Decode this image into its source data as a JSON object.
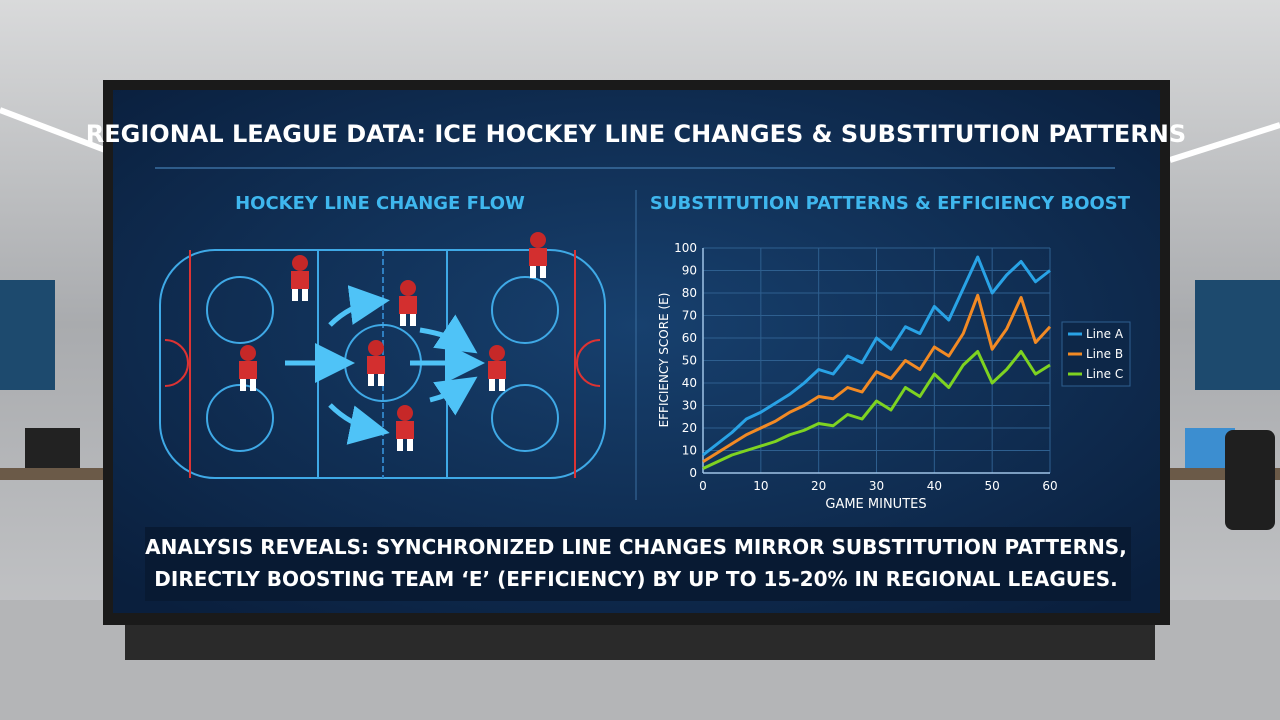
{
  "header": {
    "title": "REGIONAL LEAGUE DATA: ICE HOCKEY LINE CHANGES & SUBSTITUTION PATTERNS"
  },
  "left_panel": {
    "title": "HOCKEY LINE CHANGE FLOW"
  },
  "chart_data": {
    "type": "line",
    "title": "SUBSTITUTION PATTERNS & EFFICIENCY BOOST",
    "x_label": "GAME MINUTES",
    "y_label": "EFFICIENCY SCORE (E)",
    "x": [
      0,
      2.5,
      5,
      7.5,
      10,
      12.5,
      15,
      17.5,
      20,
      22.5,
      25,
      27.5,
      30,
      32.5,
      35,
      37.5,
      40,
      42.5,
      45,
      47.5,
      50,
      52.5,
      55,
      57.5,
      60
    ],
    "series": [
      {
        "name": "Line A",
        "color": "#29a3e6",
        "values": [
          8,
          13,
          18,
          24,
          27,
          31,
          35,
          40,
          46,
          44,
          52,
          49,
          60,
          55,
          65,
          62,
          74,
          68,
          82,
          96,
          80,
          88,
          94,
          85,
          90
        ]
      },
      {
        "name": "Line B",
        "color": "#f28a24",
        "values": [
          5,
          9,
          13,
          17,
          20,
          23,
          27,
          30,
          34,
          33,
          38,
          36,
          45,
          42,
          50,
          46,
          56,
          52,
          62,
          79,
          55,
          64,
          78,
          58,
          65
        ]
      },
      {
        "name": "Line C",
        "color": "#7ed321",
        "values": [
          2,
          5,
          8,
          10,
          12,
          14,
          17,
          19,
          22,
          21,
          26,
          24,
          32,
          28,
          38,
          34,
          44,
          38,
          48,
          54,
          40,
          46,
          54,
          44,
          48
        ]
      }
    ],
    "xlim": [
      0,
      60
    ],
    "xticks": [
      0,
      10,
      20,
      30,
      40,
      50,
      60
    ],
    "ylim": [
      0,
      100
    ],
    "yticks": [
      0,
      10,
      20,
      30,
      40,
      50,
      60,
      70,
      80,
      90,
      100
    ],
    "grid": true,
    "legend": "right"
  },
  "footer": {
    "lines": [
      "ANALYSIS REVEALS: SYNCHRONIZED LINE CHANGES MIRROR SUBSTITUTION PATTERNS,",
      "DIRECTLY BOOSTING TEAM ‘E’ (EFFICIENCY) BY UP TO 15-20% IN REGIONAL LEAGUES."
    ]
  }
}
